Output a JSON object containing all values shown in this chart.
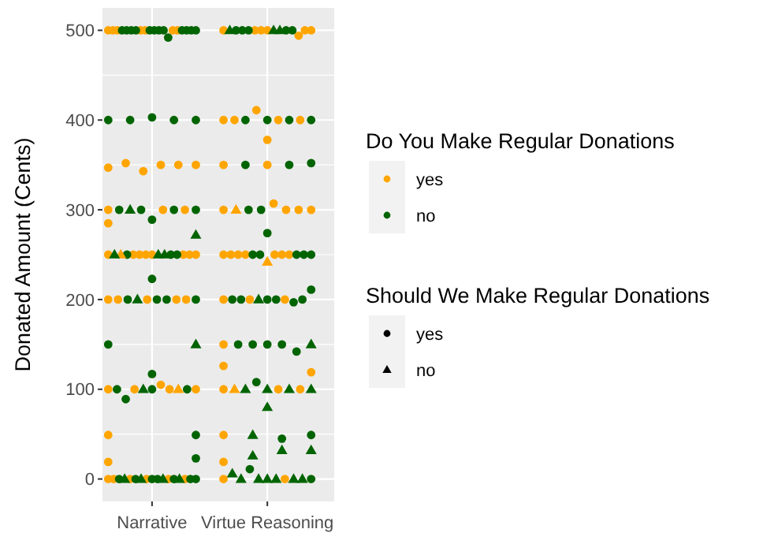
{
  "chart_data": {
    "type": "scatter",
    "ylabel": "Donated Amount (Cents)",
    "legend_title": "Do You Make Regular Donations",
    "legend": "right",
    "grid": true,
    "categories": [
      "Narrative",
      "Virtue Reasoning"
    ],
    "ylim": [
      -25,
      525
    ],
    "yticks": [
      0,
      100,
      200,
      300,
      400,
      500
    ],
    "annotations": [
      "Should We Make Regular Donations",
      "yes",
      "no"
    ],
    "series": [
      {
        "name": "yes",
        "color": "#ffa500",
        "marker": "circle",
        "x": [
          "Narrative",
          "Narrative",
          "Narrative",
          "Narrative",
          "Narrative",
          "Narrative",
          "Narrative",
          "Virtue Reasoning",
          "Virtue Reasoning",
          "Virtue Reasoning",
          "Virtue Reasoning",
          "Virtue Reasoning",
          "Virtue Reasoning",
          "Virtue Reasoning",
          "Virtue Reasoning",
          "Virtue Reasoning",
          "Virtue Reasoning",
          "Virtue Reasoning",
          "Virtue Reasoning",
          "Virtue Reasoning",
          "Narrative",
          "Narrative",
          "Narrative",
          "Narrative",
          "Narrative",
          "Narrative",
          "Virtue Reasoning",
          "Virtue Reasoning",
          "Narrative",
          "Narrative",
          "Narrative",
          "Narrative",
          "Virtue Reasoning",
          "Virtue Reasoning",
          "Virtue Reasoning",
          "Virtue Reasoning",
          "Virtue Reasoning",
          "Narrative",
          "Narrative",
          "Narrative",
          "Narrative",
          "Narrative",
          "Narrative",
          "Narrative",
          "Narrative",
          "Virtue Reasoning",
          "Virtue Reasoning",
          "Virtue Reasoning",
          "Virtue Reasoning",
          "Virtue Reasoning",
          "Virtue Reasoning",
          "Virtue Reasoning",
          "Narrative",
          "Narrative",
          "Narrative",
          "Narrative",
          "Narrative",
          "Virtue Reasoning",
          "Virtue Reasoning",
          "Virtue Reasoning",
          "Virtue Reasoning",
          "Virtue Reasoning",
          "Virtue Reasoning",
          "Narrative",
          "Narrative",
          "Narrative",
          "Narrative",
          "Narrative",
          "Virtue Reasoning",
          "Virtue Reasoning",
          "Virtue Reasoning",
          "Narrative",
          "Narrative",
          "Virtue Reasoning",
          "Virtue Reasoning",
          "Narrative",
          "Narrative",
          "Narrative",
          "Narrative",
          "Narrative",
          "Narrative",
          "Virtue Reasoning",
          "Virtue Reasoning"
        ],
        "values": [
          500,
          500,
          500,
          500,
          500,
          500,
          500,
          500,
          500,
          500,
          500,
          500,
          500,
          494,
          400,
          400,
          400,
          411,
          400,
          378,
          347,
          352,
          343,
          350,
          350,
          350,
          350,
          350,
          300,
          300,
          300,
          285,
          300,
          300,
          300,
          300,
          307,
          250,
          250,
          250,
          250,
          250,
          250,
          250,
          250,
          250,
          250,
          250,
          250,
          250,
          250,
          250,
          200,
          200,
          200,
          200,
          200,
          200,
          200,
          200,
          150,
          126,
          119,
          100,
          100,
          100,
          100,
          105,
          100,
          100,
          100,
          49,
          19,
          49,
          19,
          0,
          0,
          0,
          0,
          0,
          0,
          0,
          0
        ]
      },
      {
        "name": "no",
        "color": "#006400",
        "marker": "circle",
        "x": [
          "Narrative",
          "Narrative",
          "Narrative",
          "Narrative",
          "Narrative",
          "Narrative",
          "Narrative",
          "Narrative",
          "Narrative",
          "Narrative",
          "Narrative",
          "Narrative",
          "Narrative",
          "Virtue Reasoning",
          "Virtue Reasoning",
          "Virtue Reasoning",
          "Virtue Reasoning",
          "Virtue Reasoning",
          "Narrative",
          "Narrative",
          "Narrative",
          "Narrative",
          "Narrative",
          "Virtue Reasoning",
          "Virtue Reasoning",
          "Virtue Reasoning",
          "Virtue Reasoning",
          "Virtue Reasoning",
          "Virtue Reasoning",
          "Virtue Reasoning",
          "Narrative",
          "Narrative",
          "Narrative",
          "Narrative",
          "Narrative",
          "Virtue Reasoning",
          "Virtue Reasoning",
          "Virtue Reasoning",
          "Narrative",
          "Narrative",
          "Narrative",
          "Narrative",
          "Virtue Reasoning",
          "Virtue Reasoning",
          "Virtue Reasoning",
          "Virtue Reasoning",
          "Virtue Reasoning",
          "Virtue Reasoning",
          "Narrative",
          "Narrative",
          "Narrative",
          "Narrative",
          "Virtue Reasoning",
          "Virtue Reasoning",
          "Virtue Reasoning",
          "Virtue Reasoning",
          "Virtue Reasoning",
          "Virtue Reasoning",
          "Narrative",
          "Virtue Reasoning",
          "Virtue Reasoning",
          "Virtue Reasoning",
          "Virtue Reasoning",
          "Virtue Reasoning",
          "Virtue Reasoning",
          "Narrative",
          "Narrative",
          "Narrative",
          "Narrative",
          "Narrative",
          "Narrative",
          "Narrative",
          "Virtue Reasoning",
          "Virtue Reasoning",
          "Virtue Reasoning",
          "Narrative",
          "Narrative",
          "Narrative",
          "Narrative",
          "Narrative",
          "Narrative",
          "Narrative",
          "Virtue Reasoning"
        ],
        "values": [
          500,
          500,
          500,
          500,
          500,
          500,
          500,
          500,
          500,
          500,
          500,
          500,
          492,
          500,
          500,
          500,
          500,
          500,
          400,
          403,
          400,
          400,
          400,
          400,
          400,
          400,
          400,
          352,
          350,
          350,
          300,
          300,
          300,
          300,
          289,
          300,
          300,
          274,
          250,
          250,
          250,
          223,
          250,
          250,
          250,
          250,
          250,
          211,
          200,
          200,
          200,
          200,
          200,
          200,
          200,
          200,
          200,
          197,
          150,
          150,
          150,
          150,
          150,
          142,
          108,
          89,
          100,
          100,
          100,
          117,
          49,
          23,
          49,
          45,
          11,
          0,
          0,
          0,
          0,
          0,
          0,
          0,
          0
        ]
      },
      {
        "color": "#ffa500",
        "marker": "triangle",
        "x": [
          "Virtue Reasoning",
          "Narrative",
          "Virtue Reasoning",
          "Narrative",
          "Virtue Reasoning"
        ],
        "values": [
          300,
          250,
          242,
          100,
          100
        ]
      },
      {
        "color": "#006400",
        "marker": "triangle",
        "x": [
          "Virtue Reasoning",
          "Virtue Reasoning",
          "Virtue Reasoning",
          "Narrative",
          "Narrative",
          "Narrative",
          "Narrative",
          "Narrative",
          "Narrative",
          "Virtue Reasoning",
          "Narrative",
          "Virtue Reasoning",
          "Virtue Reasoning",
          "Narrative",
          "Virtue Reasoning",
          "Virtue Reasoning",
          "Virtue Reasoning",
          "Virtue Reasoning",
          "Virtue Reasoning",
          "Virtue Reasoning",
          "Virtue Reasoning",
          "Virtue Reasoning",
          "Narrative",
          "Narrative",
          "Narrative",
          "Narrative",
          "Virtue Reasoning",
          "Virtue Reasoning",
          "Virtue Reasoning",
          "Virtue Reasoning",
          "Virtue Reasoning",
          "Virtue Reasoning",
          "Virtue Reasoning"
        ],
        "values": [
          500,
          500,
          500,
          300,
          250,
          250,
          250,
          272,
          200,
          200,
          150,
          150,
          100,
          100,
          100,
          100,
          100,
          80,
          49,
          32,
          32,
          26,
          0,
          0,
          0,
          0,
          0,
          0,
          0,
          0,
          6,
          0,
          0
        ]
      }
    ]
  }
}
